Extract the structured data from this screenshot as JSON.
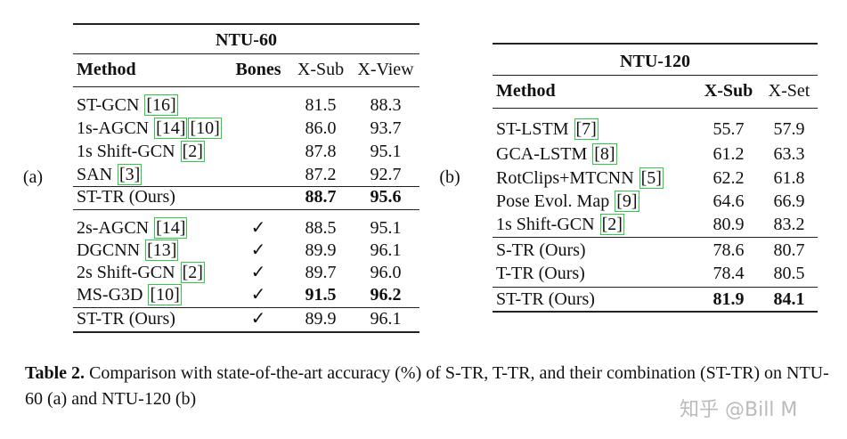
{
  "table_a": {
    "label": "(a)",
    "title": "NTU-60",
    "columns": [
      "Method",
      "Bones",
      "X-Sub",
      "X-View"
    ],
    "groups": [
      [
        {
          "method": "ST-GCN",
          "refs": [
            "[16]"
          ],
          "xsub": "81.5",
          "xview": "88.3"
        },
        {
          "method": "1s-AGCN",
          "refs": [
            "[14]",
            "[10]"
          ],
          "xsub": "86.0",
          "xview": "93.7"
        },
        {
          "method": "1s Shift-GCN",
          "refs": [
            "[2]"
          ],
          "xsub": "87.8",
          "xview": "95.1"
        },
        {
          "method": "SAN",
          "refs": [
            "[3]"
          ],
          "xsub": "87.2",
          "xview": "92.7"
        }
      ],
      [
        {
          "method": "ST-TR (Ours)",
          "xsub": "88.7",
          "xview": "95.6",
          "bold": true
        }
      ],
      [
        {
          "method": "2s-AGCN",
          "refs": [
            "[14]"
          ],
          "bones": "✓",
          "xsub": "88.5",
          "xview": "95.1"
        },
        {
          "method": "DGCNN",
          "refs": [
            "[13]"
          ],
          "bones": "✓",
          "xsub": "89.9",
          "xview": "96.1"
        },
        {
          "method": "2s Shift-GCN",
          "refs": [
            "[2]"
          ],
          "bones": "✓",
          "xsub": "89.7",
          "xview": "96.0"
        },
        {
          "method": "MS-G3D",
          "refs": [
            "[10]"
          ],
          "bones": "✓",
          "xsub": "91.5",
          "xview": "96.2",
          "bold": true
        }
      ],
      [
        {
          "method": "ST-TR (Ours)",
          "bones": "✓",
          "xsub": "89.9",
          "xview": "96.1"
        }
      ]
    ]
  },
  "table_b": {
    "label": "(b)",
    "title": "NTU-120",
    "columns": [
      "Method",
      "X-Sub",
      "X-Set"
    ],
    "groups": [
      [
        {
          "method": "ST-LSTM",
          "refs": [
            "[7]"
          ],
          "xsub": "55.7",
          "xset": "57.9"
        },
        {
          "method": "GCA-LSTM",
          "refs": [
            "[8]"
          ],
          "xsub": "61.2",
          "xset": "63.3"
        },
        {
          "method": "RotClips+MTCNN",
          "refs": [
            "[5]"
          ],
          "xsub": "62.2",
          "xset": "61.8"
        },
        {
          "method": "Pose Evol. Map",
          "refs": [
            "[9]"
          ],
          "xsub": "64.6",
          "xset": "66.9"
        },
        {
          "method": "1s Shift-GCN",
          "refs": [
            "[2]"
          ],
          "xsub": "80.9",
          "xset": "83.2"
        }
      ],
      [
        {
          "method": "S-TR (Ours)",
          "xsub": "78.6",
          "xset": "80.7"
        },
        {
          "method": "T-TR (Ours)",
          "xsub": "78.4",
          "xset": "80.5"
        }
      ],
      [
        {
          "method": "ST-TR (Ours)",
          "xsub": "81.9",
          "xset": "84.1",
          "bold": true
        }
      ]
    ]
  },
  "caption": {
    "label": "Table 2.",
    "text": "Comparison with state-of-the-art accuracy (%) of S-TR, T-TR, and their combination (ST-TR) on NTU-60 (a) and NTU-120 (b)"
  },
  "watermark": "知乎 @Bill M"
}
